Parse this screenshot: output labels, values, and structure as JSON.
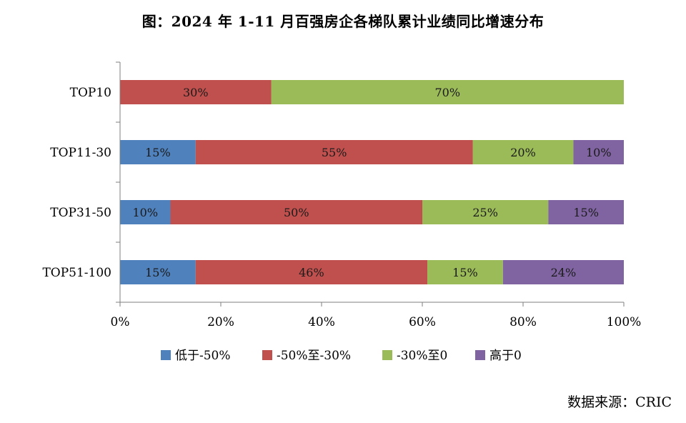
{
  "chart_data": {
    "type": "bar",
    "orientation": "horizontal",
    "stacked": "percent",
    "title": "图：2024 年 1-11 月百强房企各梯队累计业绩同比增速分布",
    "categories": [
      "TOP10",
      "TOP11-30",
      "TOP31-50",
      "TOP51-100"
    ],
    "series": [
      {
        "name": "低于-50%",
        "color": "#4F81BD",
        "values": [
          0,
          15,
          10,
          15
        ]
      },
      {
        "name": "-50%至-30%",
        "color": "#C0504D",
        "values": [
          30,
          55,
          50,
          46
        ]
      },
      {
        "name": "-30%至0",
        "color": "#9BBB59",
        "values": [
          70,
          20,
          25,
          15
        ]
      },
      {
        "name": "高于0",
        "color": "#8064A2",
        "values": [
          0,
          10,
          15,
          24
        ]
      }
    ],
    "xlim": [
      0,
      100
    ],
    "x_ticks": [
      "0%",
      "20%",
      "40%",
      "60%",
      "80%",
      "100%"
    ],
    "grid": false,
    "legend_position": "bottom"
  },
  "source_note": "数据来源：CRIC"
}
